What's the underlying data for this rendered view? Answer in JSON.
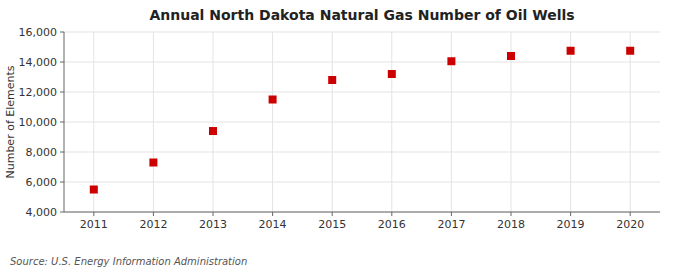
{
  "chart_data": {
    "type": "scatter",
    "title": "Annual North Dakota Natural Gas Number of Oil Wells",
    "y_label": "Number of Elements",
    "annotations": [
      "Source: U.S. Energy Information Administration"
    ],
    "x": [
      2011,
      2012,
      2013,
      2014,
      2015,
      2016,
      2017,
      2018,
      2019,
      2020
    ],
    "values": [
      5500,
      7300,
      9400,
      11500,
      12800,
      13200,
      14050,
      14400,
      14750,
      14750
    ],
    "color": "#cc0000",
    "marker": "square",
    "xlim": [
      2010.5,
      2020.5
    ],
    "xticks": [
      2011,
      2012,
      2013,
      2014,
      2015,
      2016,
      2017,
      2018,
      2019,
      2020
    ],
    "ylim": [
      4000,
      16000
    ],
    "yticks": [
      {
        "value": 4000,
        "label": "4,000"
      },
      {
        "value": 6000,
        "label": "6,000"
      },
      {
        "value": 8000,
        "label": "8,000"
      },
      {
        "value": 10000,
        "label": "10,000"
      },
      {
        "value": 12000,
        "label": "12,000"
      },
      {
        "value": 14000,
        "label": "14,000"
      },
      {
        "value": 16000,
        "label": "16,000"
      }
    ],
    "grid": true
  }
}
